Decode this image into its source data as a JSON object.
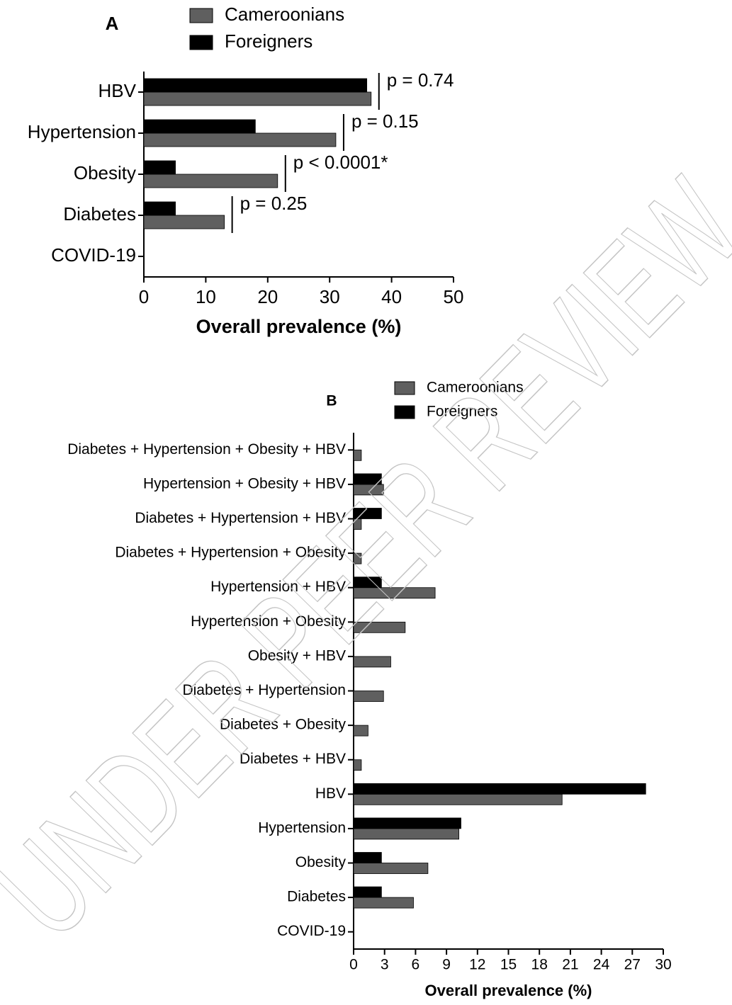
{
  "watermark": "UNDER PEER REVIEW",
  "chart_data": [
    {
      "type": "bar",
      "orientation": "horizontal",
      "title": "A",
      "xlabel": "Overall prevalence (%)",
      "categories": [
        "HBV",
        "Hypertension",
        "Obesity",
        "Diabetes",
        "COVID-19"
      ],
      "series": [
        {
          "name": "Cameroonians",
          "color": "#5f5f5f",
          "values": [
            36.7,
            31.0,
            21.6,
            13.0,
            0
          ]
        },
        {
          "name": "Foreigners",
          "color": "#000000",
          "values": [
            36.0,
            18.0,
            5.1,
            5.1,
            0
          ]
        }
      ],
      "annotations": [
        "p = 0.74",
        "p = 0.15",
        "p < 0.0001*",
        "p = 0.25"
      ],
      "xlim": [
        0,
        50
      ],
      "xticks": [
        0,
        10,
        20,
        30,
        40,
        50
      ]
    },
    {
      "type": "bar",
      "orientation": "horizontal",
      "title": "B",
      "xlabel": "Overall prevalence (%)",
      "categories": [
        "Diabetes + Hypertension + Obesity + HBV",
        "Hypertension + Obesity + HBV",
        "Diabetes + Hypertension + HBV",
        "Diabetes + Hypertension + Obesity",
        "Hypertension + HBV",
        "Hypertension + Obesity",
        "Obesity + HBV",
        "Diabetes + Hypertension",
        "Diabetes + Obesity",
        "Diabetes + HBV",
        "HBV",
        "Hypertension",
        "Obesity",
        "Diabetes",
        "COVID-19"
      ],
      "series": [
        {
          "name": "Cameroonians",
          "color": "#5f5f5f",
          "values": [
            0.75,
            2.9,
            0.75,
            0.75,
            7.9,
            5.0,
            3.6,
            2.9,
            1.4,
            0.75,
            20.2,
            10.2,
            7.2,
            5.8,
            0
          ]
        },
        {
          "name": "Foreigners",
          "color": "#000000",
          "values": [
            0,
            2.7,
            2.7,
            0,
            2.7,
            0,
            0,
            0,
            0,
            0,
            28.3,
            10.4,
            2.7,
            2.7,
            0
          ]
        }
      ],
      "xlim": [
        0,
        30
      ],
      "xticks": [
        0,
        3,
        6,
        9,
        12,
        15,
        18,
        21,
        24,
        27,
        30
      ]
    }
  ]
}
